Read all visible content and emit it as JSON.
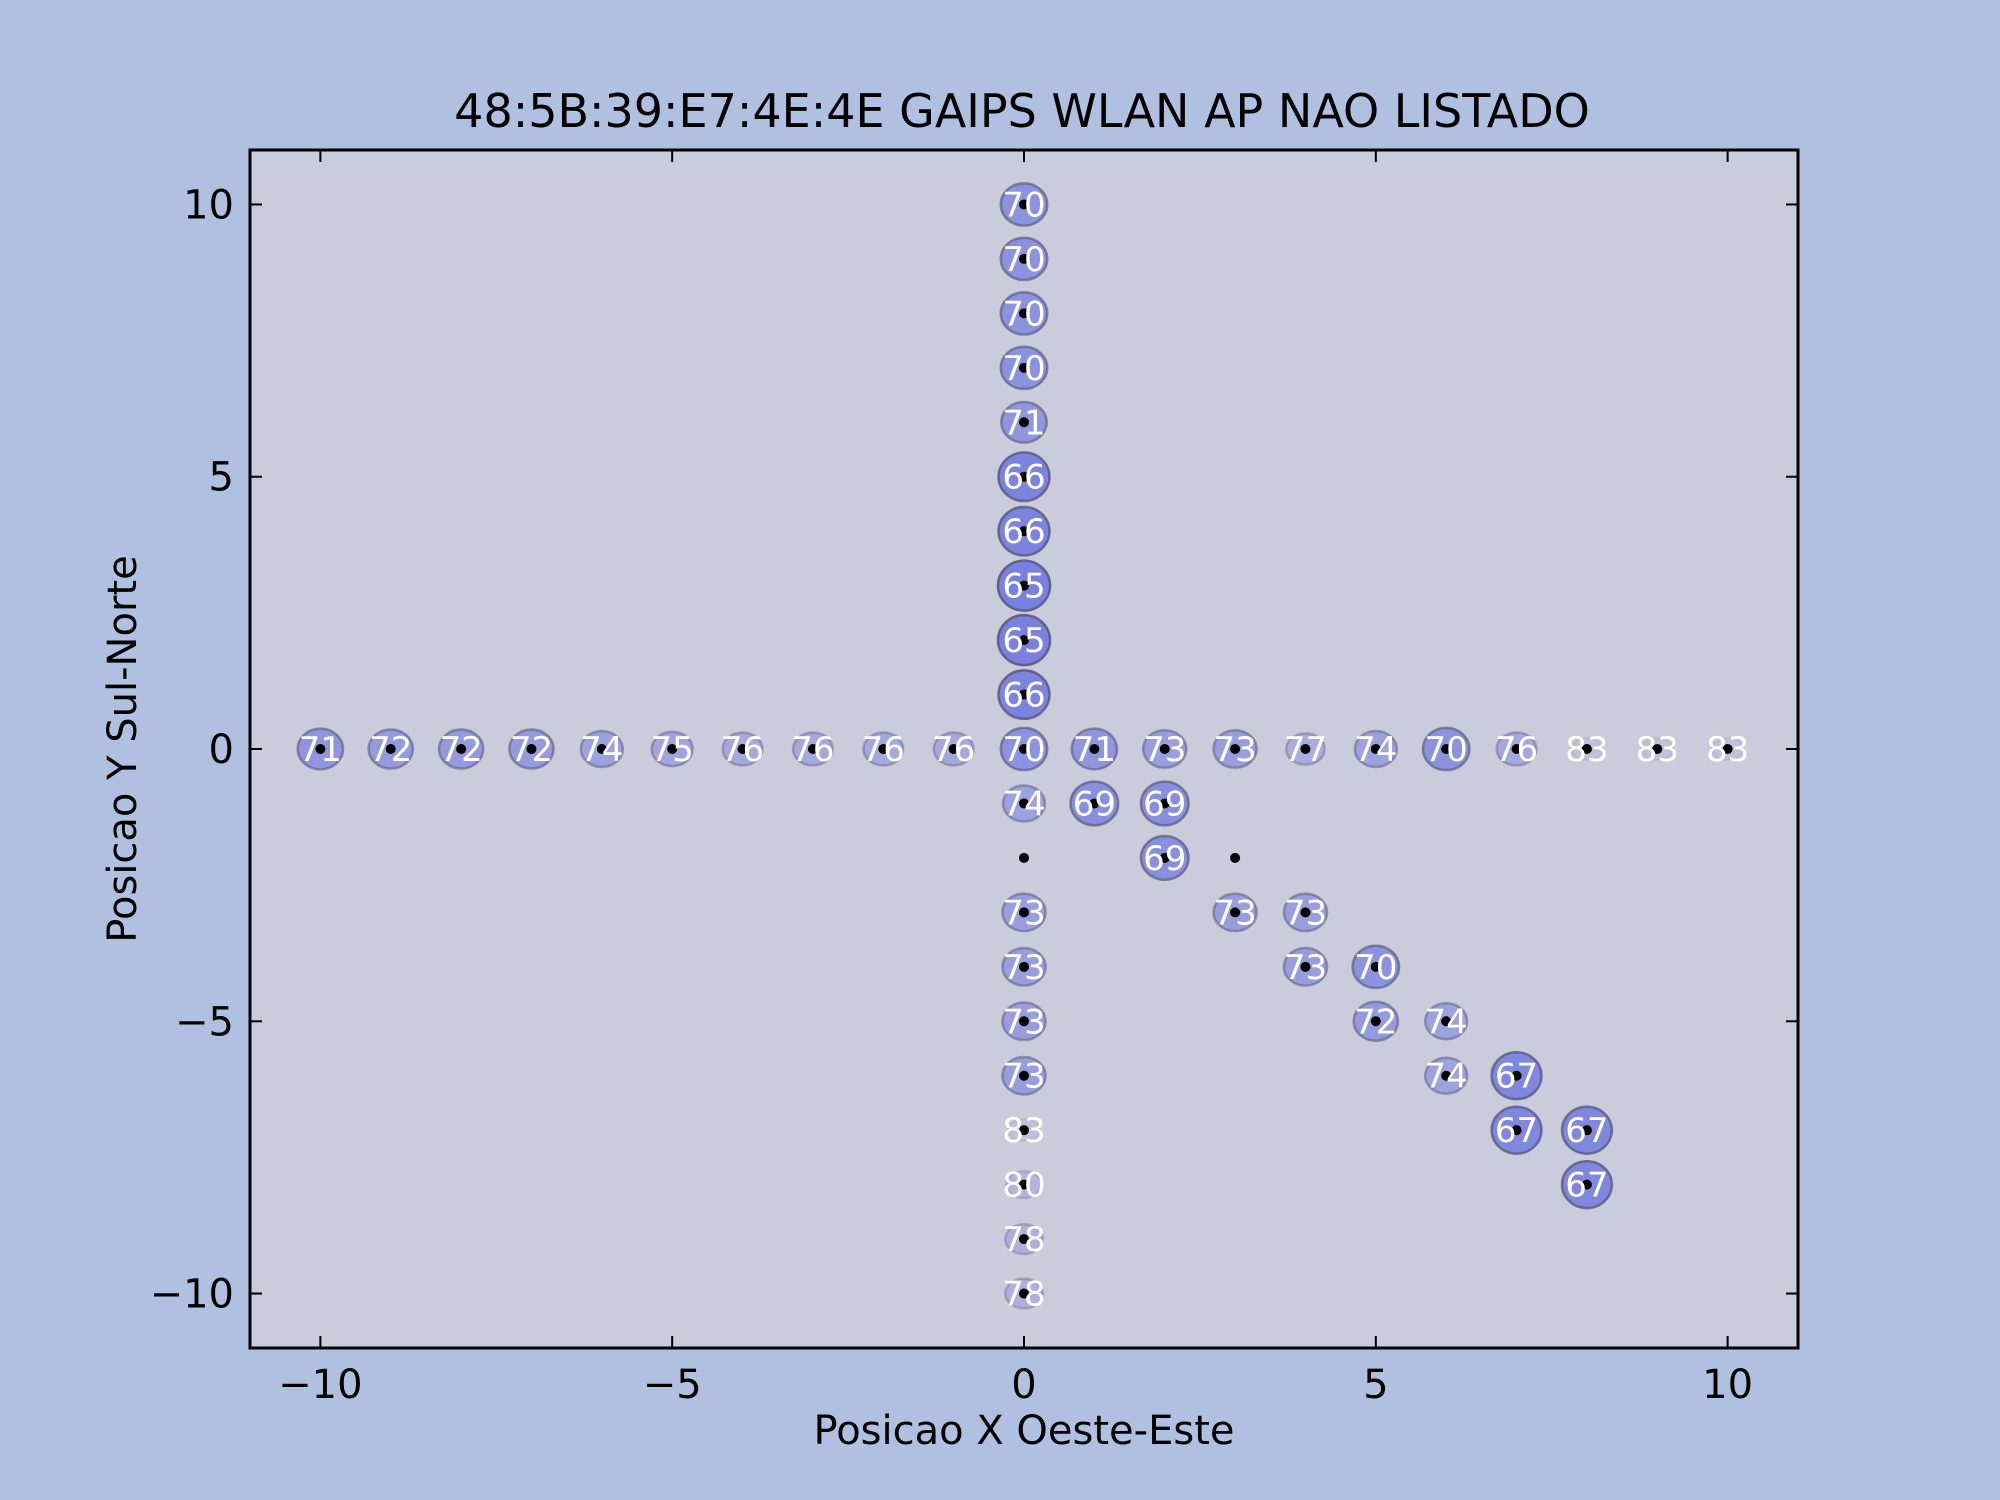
{
  "colors": {
    "figure_background": "#b0c0e0",
    "plot_background": "#c8ccdb",
    "marker_fill": "#6b72e0",
    "marker_stroke": "#5a5a80",
    "point_color": "#000000",
    "label_color": "#ffffff"
  },
  "chart_data": {
    "type": "scatter",
    "title": "48:5B:39:E7:4E:4E GAIPS WLAN AP NAO LISTADO",
    "xlabel": "Posicao X Oeste-Este",
    "ylabel": "Posicao Y Sul-Norte",
    "xlim": [
      -11,
      11
    ],
    "ylim": [
      -11,
      11
    ],
    "xticks": [
      -10,
      -5,
      0,
      5,
      10
    ],
    "yticks": [
      -10,
      -5,
      0,
      5,
      10
    ],
    "xtick_labels": [
      "−10",
      "−5",
      "0",
      "5",
      "10"
    ],
    "ytick_labels": [
      "−10",
      "−5",
      "0",
      "5",
      "10"
    ],
    "grid": false,
    "points": [
      {
        "x": 0,
        "y": 10,
        "label": "70"
      },
      {
        "x": 0,
        "y": 9,
        "label": "70"
      },
      {
        "x": 0,
        "y": 8,
        "label": "70"
      },
      {
        "x": 0,
        "y": 7,
        "label": "70"
      },
      {
        "x": 0,
        "y": 6,
        "label": "71"
      },
      {
        "x": 0,
        "y": 5,
        "label": "66"
      },
      {
        "x": 0,
        "y": 4,
        "label": "66"
      },
      {
        "x": 0,
        "y": 3,
        "label": "65"
      },
      {
        "x": 0,
        "y": 2,
        "label": "65"
      },
      {
        "x": 0,
        "y": 1,
        "label": "66"
      },
      {
        "x": -10,
        "y": 0,
        "label": "71"
      },
      {
        "x": -9,
        "y": 0,
        "label": "72"
      },
      {
        "x": -8,
        "y": 0,
        "label": "72"
      },
      {
        "x": -7,
        "y": 0,
        "label": "72"
      },
      {
        "x": -6,
        "y": 0,
        "label": "74"
      },
      {
        "x": -5,
        "y": 0,
        "label": "75"
      },
      {
        "x": -4,
        "y": 0,
        "label": "76"
      },
      {
        "x": -3,
        "y": 0,
        "label": "76"
      },
      {
        "x": -2,
        "y": 0,
        "label": "76"
      },
      {
        "x": -1,
        "y": 0,
        "label": "76"
      },
      {
        "x": 0,
        "y": 0,
        "label": "70"
      },
      {
        "x": 1,
        "y": 0,
        "label": "71"
      },
      {
        "x": 2,
        "y": 0,
        "label": "73"
      },
      {
        "x": 3,
        "y": 0,
        "label": "73"
      },
      {
        "x": 4,
        "y": 0,
        "label": "77"
      },
      {
        "x": 5,
        "y": 0,
        "label": "74"
      },
      {
        "x": 6,
        "y": 0,
        "label": "70"
      },
      {
        "x": 7,
        "y": 0,
        "label": "76"
      },
      {
        "x": 8,
        "y": 0,
        "label": "83"
      },
      {
        "x": 9,
        "y": 0,
        "label": "83"
      },
      {
        "x": 10,
        "y": 0,
        "label": "83"
      },
      {
        "x": 0,
        "y": -1,
        "label": "74"
      },
      {
        "x": 1,
        "y": -1,
        "label": "69"
      },
      {
        "x": 2,
        "y": -1,
        "label": "69"
      },
      {
        "x": 0,
        "y": -2,
        "label": ""
      },
      {
        "x": 2,
        "y": -2,
        "label": "69"
      },
      {
        "x": 3,
        "y": -2,
        "label": ""
      },
      {
        "x": 0,
        "y": -3,
        "label": "73"
      },
      {
        "x": 3,
        "y": -3,
        "label": "73"
      },
      {
        "x": 4,
        "y": -3,
        "label": "73"
      },
      {
        "x": 0,
        "y": -4,
        "label": "73"
      },
      {
        "x": 4,
        "y": -4,
        "label": "73"
      },
      {
        "x": 5,
        "y": -4,
        "label": "70"
      },
      {
        "x": 0,
        "y": -5,
        "label": "73"
      },
      {
        "x": 5,
        "y": -5,
        "label": "72"
      },
      {
        "x": 6,
        "y": -5,
        "label": "74"
      },
      {
        "x": 0,
        "y": -6,
        "label": "73"
      },
      {
        "x": 6,
        "y": -6,
        "label": "74"
      },
      {
        "x": 7,
        "y": -6,
        "label": "67"
      },
      {
        "x": 0,
        "y": -7,
        "label": "83"
      },
      {
        "x": 7,
        "y": -7,
        "label": "67"
      },
      {
        "x": 8,
        "y": -7,
        "label": "67"
      },
      {
        "x": 0,
        "y": -8,
        "label": "80"
      },
      {
        "x": 8,
        "y": -8,
        "label": "67"
      },
      {
        "x": 0,
        "y": -9,
        "label": "78"
      },
      {
        "x": 0,
        "y": -10,
        "label": "78"
      }
    ]
  }
}
